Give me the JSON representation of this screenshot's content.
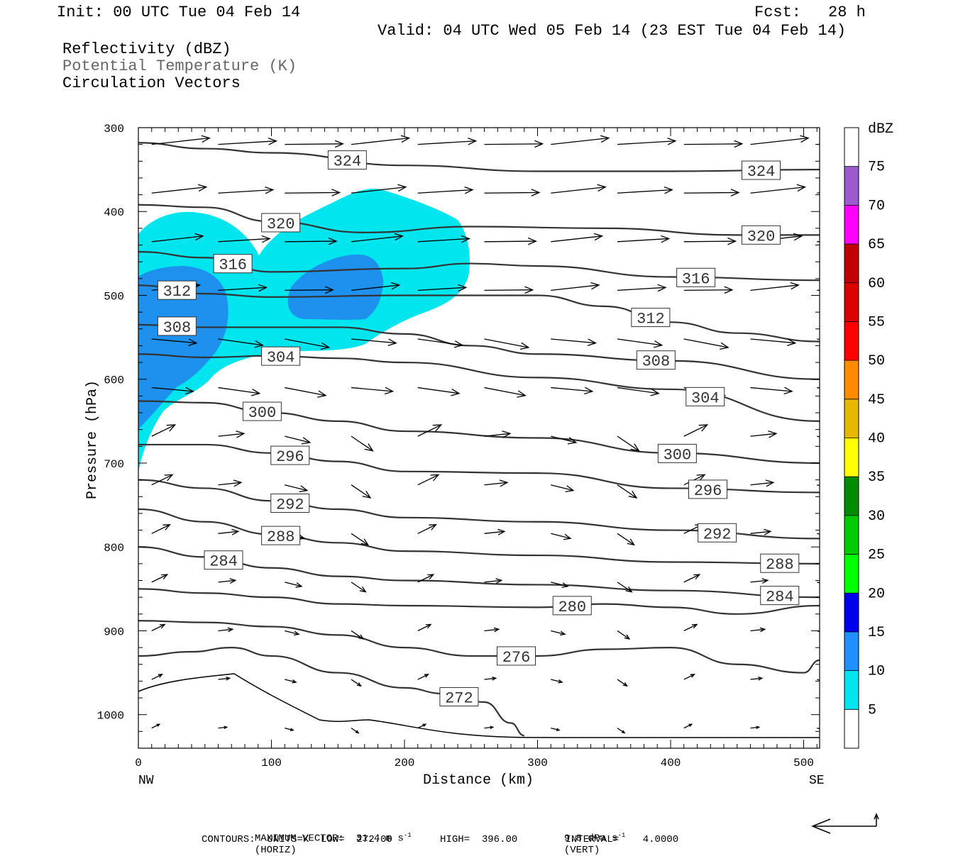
{
  "header": {
    "init": "Init: 00 UTC Tue 04 Feb 14",
    "fcst_label": "Fcst:",
    "fcst_value": "28 h",
    "valid": "Valid: 04 UTC Wed 05 Feb 14 (23 EST Tue 04 Feb 14)",
    "fields": [
      "Reflectivity (dBZ)",
      "Potential Temperature (K)",
      "Circulation Vectors"
    ]
  },
  "colors": {
    "contour": "#333333",
    "dbz_5": "#00e5ee",
    "dbz_10": "#1e90ee",
    "axis": "#000000"
  },
  "chart_data": {
    "type": "cross-section",
    "xlabel": "Distance (km)",
    "ylabel": "Pressure (hPa)",
    "xlim": [
      0,
      512
    ],
    "ylim": [
      1040,
      300
    ],
    "x_ticks": [
      "0",
      "100",
      "200",
      "300",
      "400",
      "500"
    ],
    "y_ticks": [
      "300",
      "400",
      "500",
      "600",
      "700",
      "800",
      "900",
      "1000"
    ],
    "x_end_labels": {
      "left": "NW",
      "right": "SE"
    },
    "theta_contours": [
      {
        "level": 324,
        "x": [
          0,
          50,
          100,
          200,
          300,
          400,
          512
        ],
        "p": [
          318,
          325,
          330,
          345,
          352,
          352,
          350
        ],
        "label_x": [
          157,
          468
        ]
      },
      {
        "level": 320,
        "x": [
          0,
          50,
          100,
          170,
          250,
          350,
          450,
          512
        ],
        "p": [
          392,
          395,
          412,
          425,
          418,
          420,
          428,
          428
        ],
        "label_x": [
          107,
          468
        ]
      },
      {
        "level": 316,
        "x": [
          0,
          50,
          100,
          200,
          250,
          300,
          400,
          512
        ],
        "p": [
          448,
          455,
          472,
          468,
          462,
          465,
          478,
          482
        ],
        "label_x": [
          71,
          419
        ]
      },
      {
        "level": 312,
        "x": [
          0,
          50,
          100,
          200,
          300,
          350,
          400,
          450,
          512
        ],
        "p": [
          488,
          498,
          502,
          500,
          500,
          513,
          532,
          545,
          555
        ],
        "label_x": [
          29,
          385
        ]
      },
      {
        "level": 308,
        "x": [
          0,
          50,
          100,
          150,
          200,
          250,
          300,
          400,
          512
        ],
        "p": [
          535,
          538,
          538,
          538,
          546,
          560,
          570,
          578,
          600
        ],
        "label_x": [
          29,
          389
        ]
      },
      {
        "level": 304,
        "x": [
          0,
          50,
          100,
          150,
          200,
          300,
          400,
          512
        ],
        "p": [
          570,
          574,
          572,
          575,
          580,
          598,
          612,
          650
        ],
        "label_x": [
          107,
          426
        ]
      },
      {
        "level": 300,
        "x": [
          0,
          50,
          100,
          150,
          200,
          300,
          400,
          512
        ],
        "p": [
          626,
          628,
          640,
          650,
          662,
          670,
          688,
          700
        ],
        "label_x": [
          93,
          405
        ]
      },
      {
        "level": 296,
        "x": [
          0,
          50,
          100,
          150,
          200,
          300,
          400,
          512
        ],
        "p": [
          678,
          678,
          688,
          698,
          710,
          712,
          730,
          735
        ],
        "label_x": [
          114,
          428
        ]
      },
      {
        "level": 292,
        "x": [
          0,
          50,
          100,
          150,
          200,
          300,
          400,
          512
        ],
        "p": [
          720,
          730,
          745,
          755,
          765,
          770,
          780,
          790
        ],
        "label_x": [
          114,
          435
        ]
      },
      {
        "level": 288,
        "x": [
          0,
          50,
          100,
          150,
          200,
          300,
          400,
          512
        ],
        "p": [
          755,
          770,
          785,
          795,
          805,
          810,
          818,
          820
        ],
        "label_x": [
          107,
          482
        ]
      },
      {
        "level": 284,
        "x": [
          0,
          50,
          100,
          150,
          200,
          300,
          400,
          512
        ],
        "p": [
          800,
          812,
          825,
          835,
          840,
          845,
          852,
          860
        ],
        "label_x": [
          64,
          482
        ]
      },
      {
        "level": 280,
        "x": [
          0,
          50,
          100,
          150,
          200,
          300,
          350,
          400,
          450,
          512
        ],
        "p": [
          850,
          855,
          860,
          868,
          870,
          872,
          868,
          872,
          880,
          870
        ],
        "label_x": [
          326
        ]
      },
      {
        "level": 276,
        "x": [
          0,
          50,
          100,
          150,
          200,
          250,
          300,
          350,
          400,
          450,
          500,
          512
        ],
        "p": [
          888,
          890,
          895,
          905,
          920,
          930,
          930,
          922,
          920,
          940,
          950,
          935
        ],
        "label_x": [
          284
        ]
      },
      {
        "level": 272,
        "x": [
          0,
          40,
          70,
          100,
          150,
          200,
          230,
          260,
          280,
          290
        ],
        "p": [
          930,
          925,
          920,
          930,
          950,
          968,
          975,
          985,
          1010,
          1025
        ],
        "label_x": [
          241
        ]
      }
    ],
    "reflectivity_levels_dbz": [
      5,
      10,
      15,
      20,
      25,
      30,
      35,
      40,
      45,
      50,
      55,
      60,
      65,
      70,
      75
    ],
    "colorbar": {
      "title": "dBZ",
      "labels": [
        "75",
        "70",
        "65",
        "60",
        "55",
        "50",
        "45",
        "40",
        "35",
        "30",
        "25",
        "20",
        "15",
        "10",
        "5"
      ],
      "colors": [
        "#9c5bcd",
        "#ff00ff",
        "#c00000",
        "#dc0000",
        "#ff0000",
        "#ff8c00",
        "#e6b800",
        "#ffff00",
        "#008b00",
        "#00cd00",
        "#00ff00",
        "#0000ee",
        "#1e90ff",
        "#00e5ee",
        "#ffffff"
      ]
    },
    "max_vector": "MAXIMUM VECTOR:  31.4 m s",
    "max_vector_h": "(HORIZ)",
    "max_vector_v": "9.8 dPa s",
    "max_vector_v_unit": "(VERT)",
    "contour_info": "CONTOURS:  UNITS=K  LOW=  272.00        HIGH=  396.00        INTERVAL=    4.0000"
  }
}
